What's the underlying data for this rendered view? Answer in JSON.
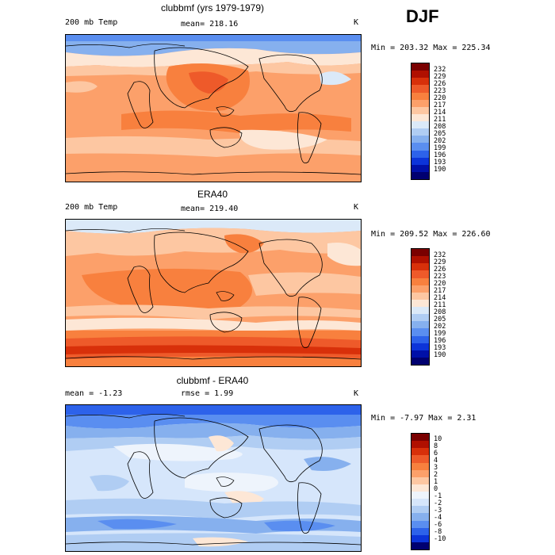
{
  "season": "DJF",
  "panels": [
    {
      "title": "clubbmf (yrs 1979-1979)",
      "left_label": "200 mb Temp",
      "center_label": "mean= 218.16",
      "right_label": "K",
      "minmax": "Min = 203.32 Max = 225.34",
      "levels": [
        "232",
        "229",
        "226",
        "223",
        "220",
        "217",
        "214",
        "211",
        "208",
        "205",
        "202",
        "199",
        "196",
        "193",
        "190"
      ]
    },
    {
      "title": "ERA40",
      "left_label": "200 mb Temp",
      "center_label": "mean= 219.40",
      "right_label": "K",
      "minmax": "Min = 209.52 Max = 226.60",
      "levels": [
        "232",
        "229",
        "226",
        "223",
        "220",
        "217",
        "214",
        "211",
        "208",
        "205",
        "202",
        "199",
        "196",
        "193",
        "190"
      ]
    },
    {
      "title": "clubbmf - ERA40",
      "left_label": "mean =  -1.23",
      "center_label": "rmse =  1.99",
      "right_label": "K",
      "minmax": "Min = -7.97 Max =  2.31",
      "levels": [
        "10",
        "8",
        "6",
        "4",
        "3",
        "2",
        "1",
        "0",
        "-1",
        "-2",
        "-3",
        "-4",
        "-6",
        "-8",
        "-10"
      ]
    }
  ],
  "colors": {
    "abs_scale": [
      "#7a0000",
      "#b01000",
      "#d8300a",
      "#ee5a2a",
      "#f8803e",
      "#fca06a",
      "#fdc7a2",
      "#fde7d6",
      "#dbe9f8",
      "#b0cdf3",
      "#86b0ee",
      "#5a8ef0",
      "#2d62ea",
      "#0c34d9",
      "#0010a8",
      "#000070"
    ],
    "diff_scale": [
      "#7a0000",
      "#b01000",
      "#d8300a",
      "#ee5a2a",
      "#f8803e",
      "#fca06a",
      "#fdc7a2",
      "#fde7d6",
      "#eef4fc",
      "#d6e6fb",
      "#b0cdf3",
      "#86b0ee",
      "#5a8ef0",
      "#2d62ea",
      "#0c34d9",
      "#000070"
    ]
  }
}
